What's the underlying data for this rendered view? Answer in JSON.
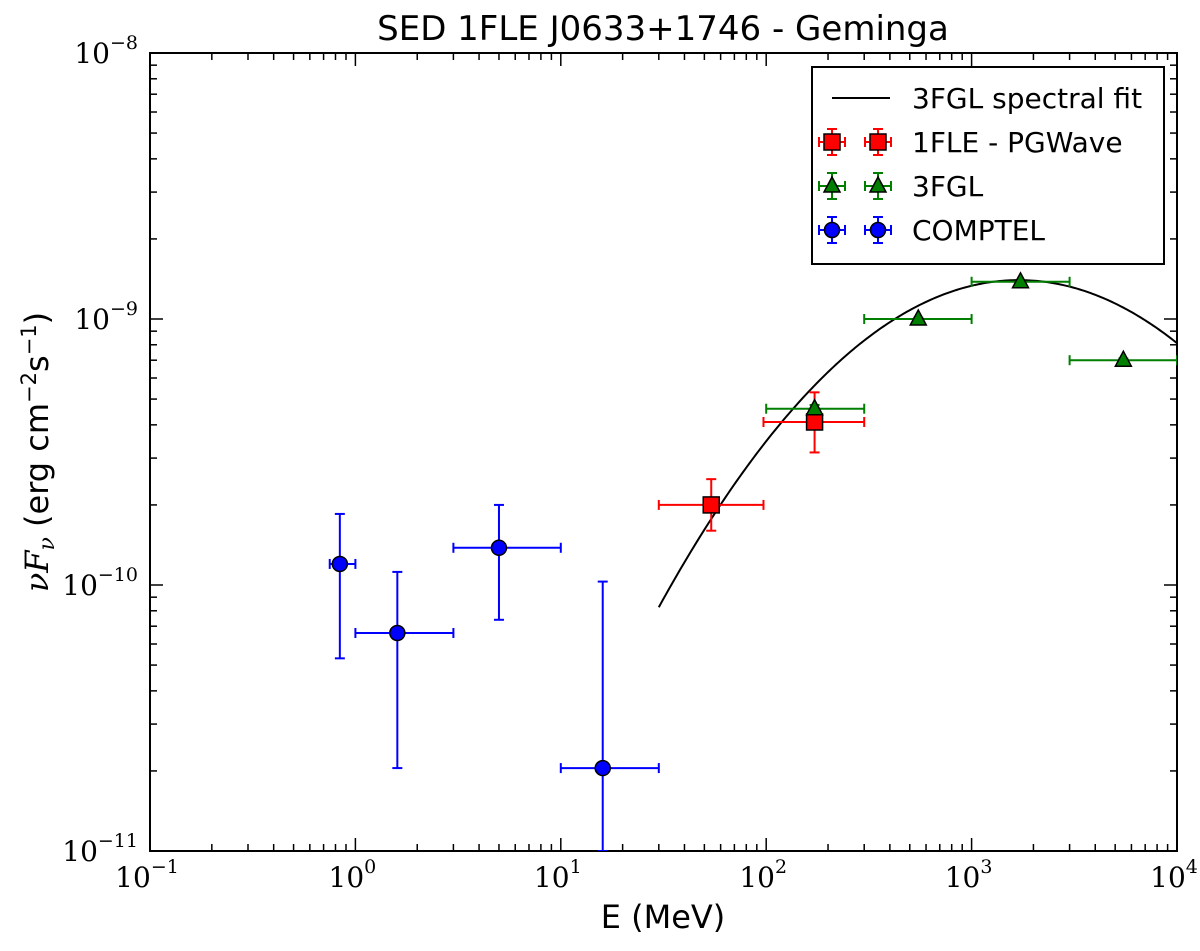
{
  "chart_data": {
    "type": "scatter",
    "title": "SED 1FLE J0633+1746 - Geminga",
    "xlabel": "E (MeV)",
    "ylabel": {
      "prefix": "νF",
      "subscript": "ν",
      "units_open": " (erg cm",
      "exp1": "−2",
      "units_mid": "s",
      "exp2": "−1",
      "units_close": ")"
    },
    "xscale": "log",
    "yscale": "log",
    "xlim": [
      0.1,
      10000
    ],
    "ylim": [
      1e-11,
      1e-08
    ],
    "x_ticks": [
      {
        "value": 0.1,
        "base": "10",
        "exp": "−1"
      },
      {
        "value": 1,
        "base": "10",
        "exp": "0"
      },
      {
        "value": 10,
        "base": "10",
        "exp": "1"
      },
      {
        "value": 100,
        "base": "10",
        "exp": "2"
      },
      {
        "value": 1000,
        "base": "10",
        "exp": "3"
      },
      {
        "value": 10000,
        "base": "10",
        "exp": "4"
      }
    ],
    "y_ticks": [
      {
        "value": 1e-11,
        "base": "10",
        "exp": "−11"
      },
      {
        "value": 1e-10,
        "base": "10",
        "exp": "−10"
      },
      {
        "value": 1e-09,
        "base": "10",
        "exp": "−9"
      },
      {
        "value": 1e-08,
        "base": "10",
        "exp": "−8"
      }
    ],
    "legend_position": "top-right",
    "fit_curve": {
      "name": "3FGL spectral fit",
      "color": "#000000",
      "x_range": [
        30,
        10000
      ],
      "peak_energy_mev": 1700,
      "peak_flux": 1.4e-09,
      "log_curvature": 0.4
    },
    "series": [
      {
        "name": "1FLE - PGWave",
        "marker": "square",
        "color": "#ff0000",
        "points": [
          {
            "x": 54,
            "xlo": 30,
            "xhi": 97,
            "y": 2e-10,
            "ylo": 1.6e-10,
            "yhi": 2.5e-10
          },
          {
            "x": 172,
            "xlo": 97,
            "xhi": 300,
            "y": 4.1e-10,
            "ylo": 3.15e-10,
            "yhi": 5.3e-10
          }
        ]
      },
      {
        "name": "3FGL",
        "marker": "triangle",
        "color": "#007f00",
        "points": [
          {
            "x": 172,
            "xlo": 100,
            "xhi": 300,
            "y": 4.6e-10,
            "ylo": 4.45e-10,
            "yhi": 4.75e-10
          },
          {
            "x": 550,
            "xlo": 300,
            "xhi": 1000,
            "y": 1e-09,
            "ylo": 9.9e-10,
            "yhi": 1.01e-09
          },
          {
            "x": 1730,
            "xlo": 1000,
            "xhi": 3000,
            "y": 1.38e-09,
            "ylo": 1.37e-09,
            "yhi": 1.39e-09
          },
          {
            "x": 5480,
            "xlo": 3000,
            "xhi": 10000,
            "y": 7e-10,
            "ylo": 6.9e-10,
            "yhi": 7.1e-10
          }
        ]
      },
      {
        "name": "COMPTEL",
        "marker": "circle",
        "color": "#0000ff",
        "points": [
          {
            "x": 0.84,
            "xlo": 0.75,
            "xhi": 1.0,
            "y": 1.2e-10,
            "ylo": 5.3e-11,
            "yhi": 1.85e-10
          },
          {
            "x": 1.6,
            "xlo": 1.0,
            "xhi": 3.0,
            "y": 6.6e-11,
            "ylo": 2.05e-11,
            "yhi": 1.12e-10
          },
          {
            "x": 5.0,
            "xlo": 3.0,
            "xhi": 10.0,
            "y": 1.38e-10,
            "ylo": 7.4e-11,
            "yhi": 2e-10
          },
          {
            "x": 16,
            "xlo": 10,
            "xhi": 30,
            "y": 2.05e-11,
            "ylo": 1e-11,
            "yhi": 1.03e-10
          }
        ]
      }
    ]
  }
}
